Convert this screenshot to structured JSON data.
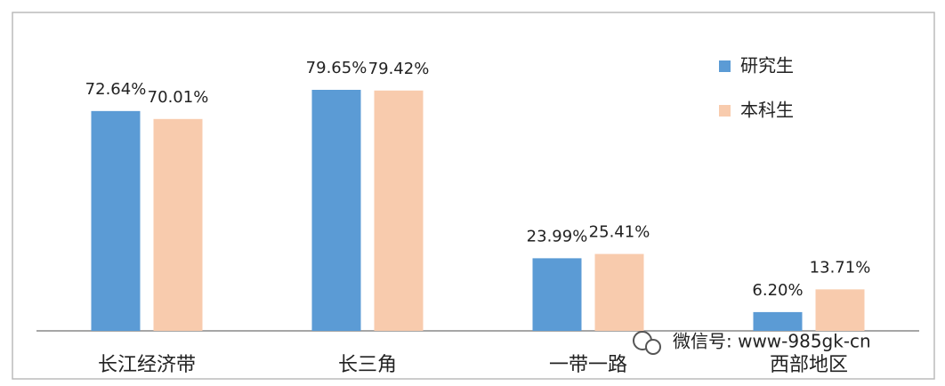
{
  "chart_data": {
    "type": "bar",
    "categories": [
      "长江经济带",
      "长三角",
      "一带一路",
      "西部地区"
    ],
    "series": [
      {
        "name": "研究生",
        "color": "#5b9bd5",
        "values": [
          72.64,
          79.65,
          23.99,
          6.2
        ],
        "value_labels": [
          "72.64%",
          "79.65%",
          "23.99%",
          "6.20%"
        ]
      },
      {
        "name": "本科生",
        "color": "#f8cbad",
        "values": [
          70.01,
          79.42,
          25.41,
          13.71
        ],
        "value_labels": [
          "70.01%",
          "79.42%",
          "25.41%",
          "13.71%"
        ]
      }
    ],
    "legend": "upper right",
    "watermark": "微信号: www-985gk-cn"
  }
}
